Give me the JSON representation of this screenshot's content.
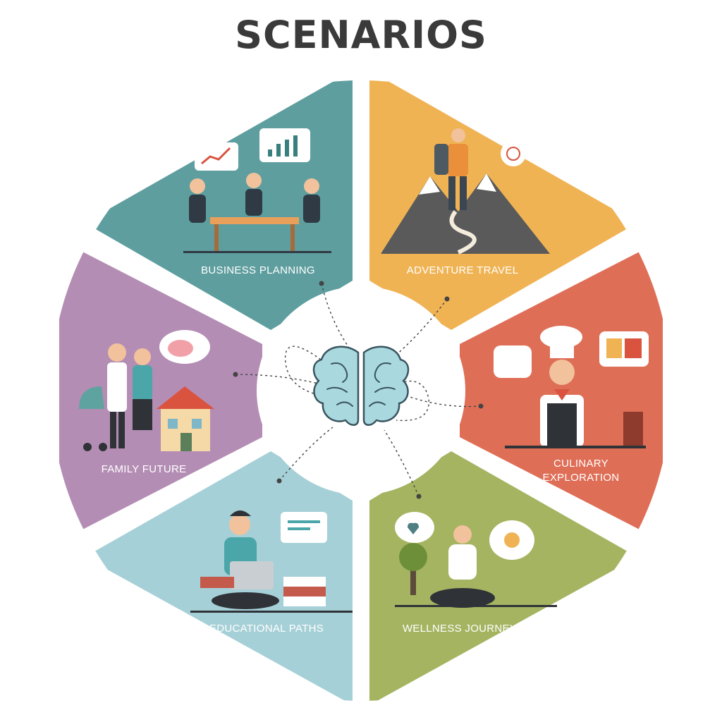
{
  "title": "SCENARIOS",
  "colors": {
    "business": "#5f9e9f",
    "adventure": "#f0b354",
    "culinary": "#df6e57",
    "wellness": "#a4b461",
    "education": "#a6d0d7",
    "family": "#b48db4",
    "brain": "#a9d8de",
    "brain_stroke": "#3a5560",
    "connector": "#444444"
  },
  "center": {
    "icon": "brain-icon"
  },
  "segments": [
    {
      "id": "business",
      "label": "BUSINESS PLANNING",
      "icon": "business-meeting-icon"
    },
    {
      "id": "adventure",
      "label": "ADVENTURE TRAVEL",
      "icon": "mountain-hiker-icon"
    },
    {
      "id": "culinary",
      "label_line1": "CULINARY",
      "label_line2": "EXPLORATION",
      "icon": "chef-icon"
    },
    {
      "id": "wellness",
      "label": "WELLNESS JOURNEY",
      "icon": "meditation-icon"
    },
    {
      "id": "education",
      "label": "EDUCATIONAL PATHS",
      "icon": "student-laptop-icon"
    },
    {
      "id": "family",
      "label": "FAMILY FUTURE",
      "icon": "family-house-icon"
    }
  ]
}
